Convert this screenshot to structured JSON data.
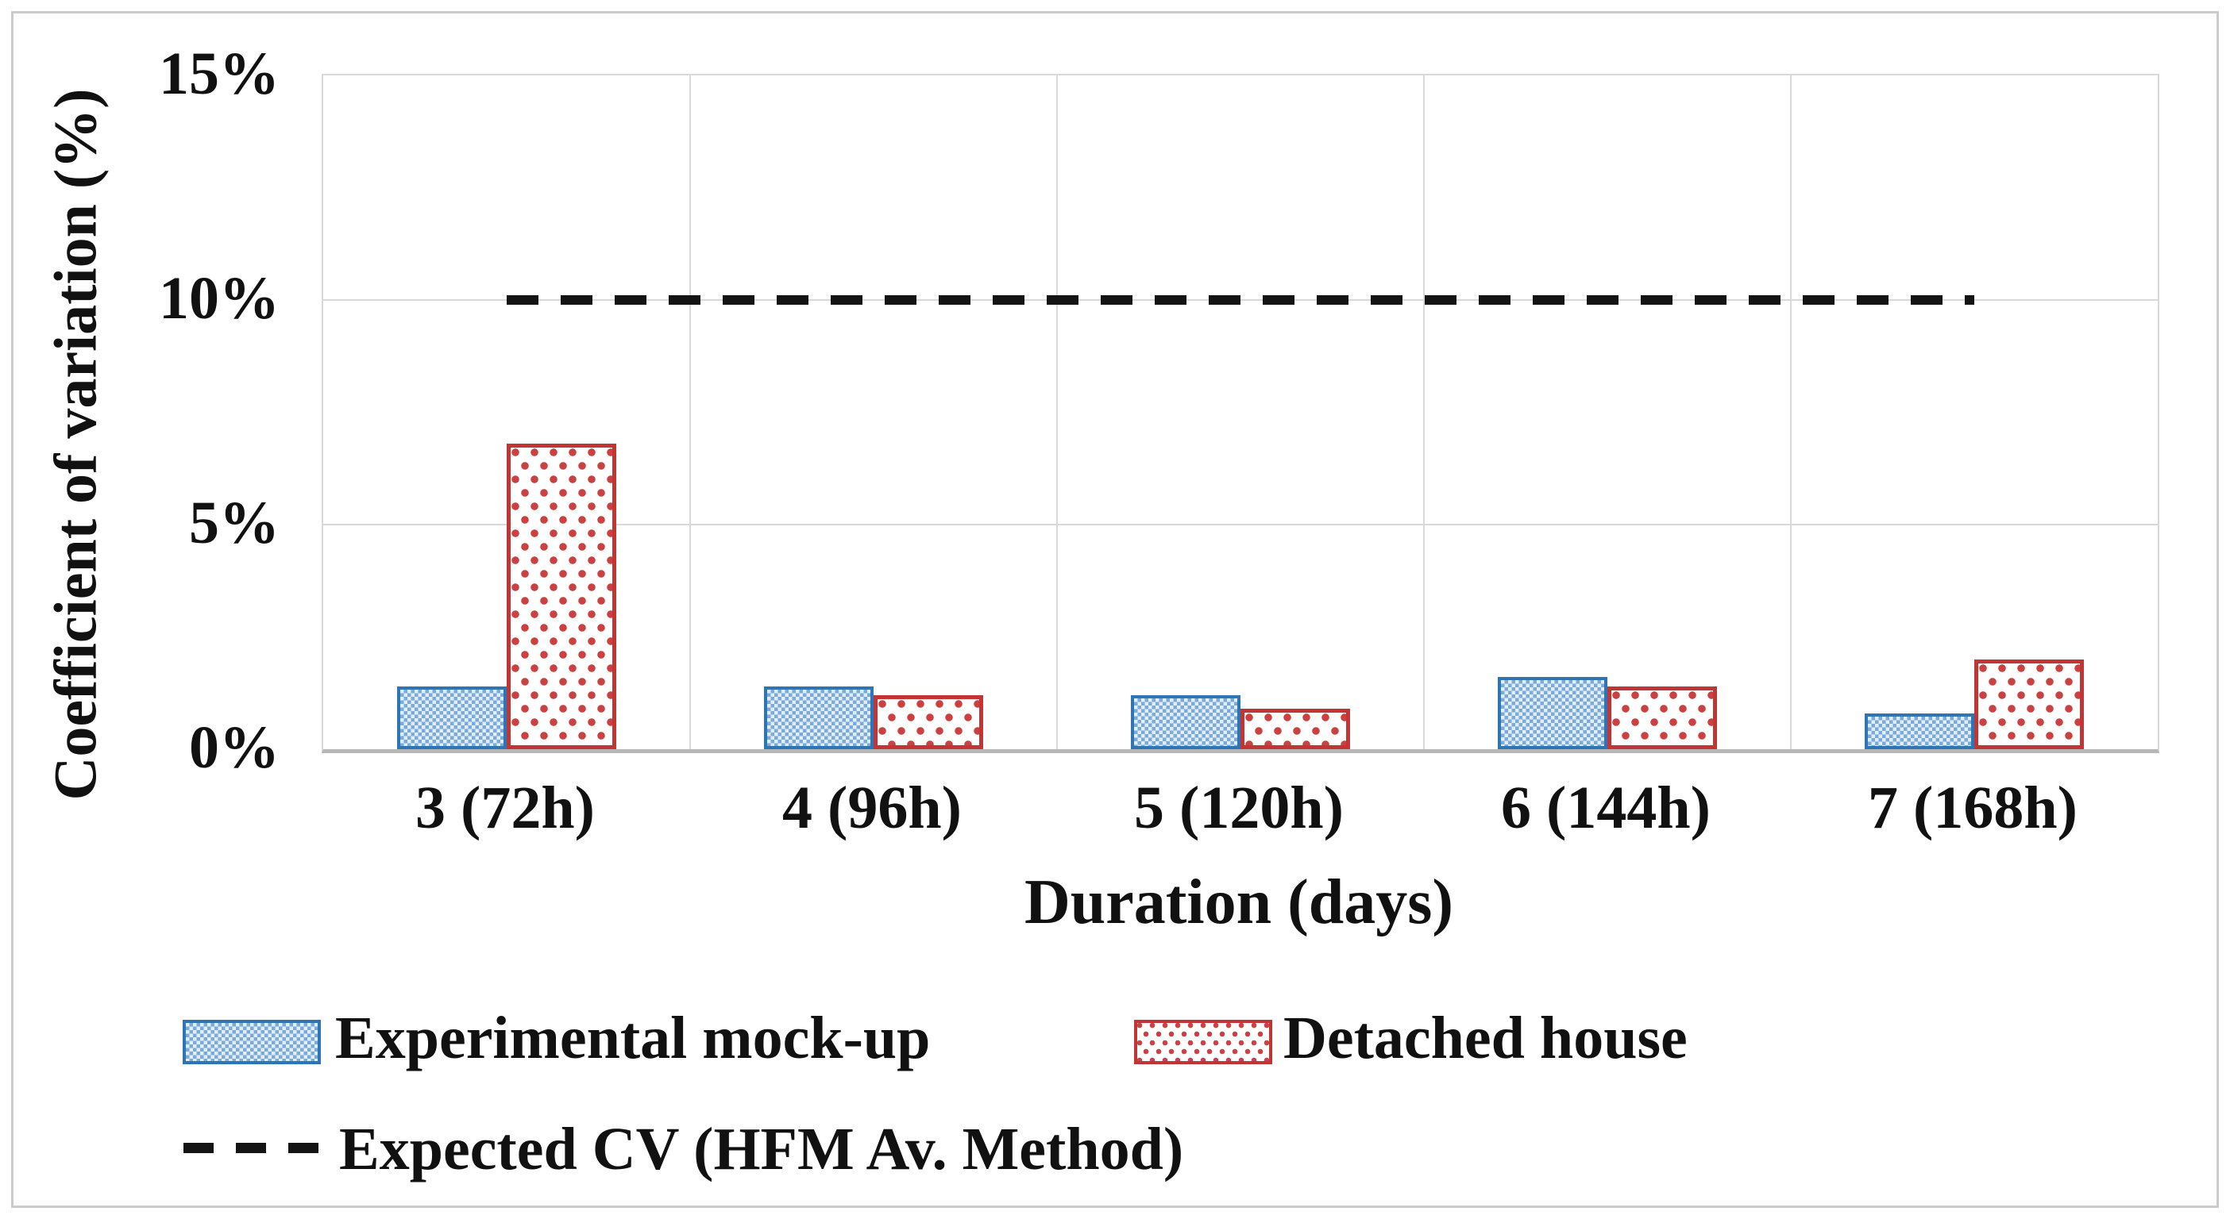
{
  "chart_data": {
    "type": "bar",
    "title": "",
    "categories": [
      "3 (72h)",
      "4 (96h)",
      "5 (120h)",
      "6 (144h)",
      "7 (168h)"
    ],
    "series": [
      {
        "name": "Experimental mock-up",
        "values": [
          1.4,
          1.4,
          1.2,
          1.6,
          0.8
        ],
        "color": "#2E75B6",
        "fill_pattern": "blue-checker"
      },
      {
        "name": "Detached house",
        "values": [
          6.8,
          1.2,
          0.9,
          1.4,
          2.0
        ],
        "color": "#C23535",
        "fill_pattern": "red-dots"
      }
    ],
    "reference_line": {
      "label": "Expected CV (HFM Av. Method)",
      "value": 10,
      "style": "dashed",
      "color": "#141414",
      "spans_category_centers": [
        0,
        4
      ]
    },
    "xlabel": "Duration (days)",
    "ylabel": "Coefficient of variation (%)",
    "ylim": [
      0,
      15
    ],
    "ytick_step": 5,
    "yticks": [
      "0%",
      "5%",
      "10%",
      "15%"
    ],
    "grid": true,
    "legend_position": "bottom-left"
  }
}
